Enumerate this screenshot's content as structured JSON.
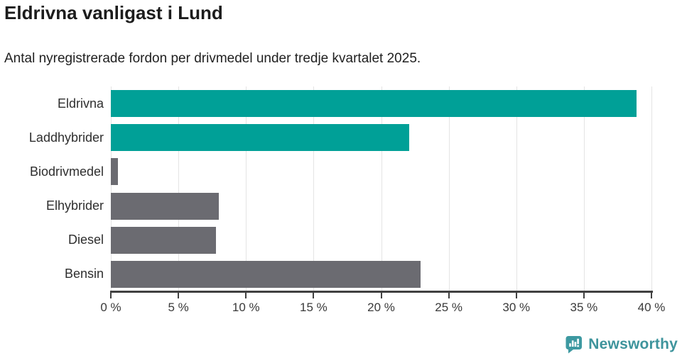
{
  "title": "Eldrivna vanligast i Lund",
  "subtitle": "Antal nyregistrerade fordon per drivmedel under tredje kvartalet 2025.",
  "chart_data": {
    "type": "bar",
    "orientation": "horizontal",
    "title": "Eldrivna vanligast i Lund",
    "subtitle": "Antal nyregistrerade fordon per drivmedel under tredje kvartalet 2025.",
    "categories": [
      "Eldrivna",
      "Laddhybrider",
      "Biodrivmedel",
      "Elhybrider",
      "Diesel",
      "Bensin"
    ],
    "values": [
      38.9,
      22.1,
      0.5,
      8.0,
      7.8,
      22.9
    ],
    "bar_colors": [
      "#00a097",
      "#00a097",
      "#6b6b71",
      "#6b6b71",
      "#6b6b71",
      "#6b6b71"
    ],
    "xlim": [
      0,
      40
    ],
    "x_ticks": [
      0,
      5,
      10,
      15,
      20,
      25,
      30,
      35,
      40
    ],
    "x_tick_labels": [
      "0 %",
      "5 %",
      "10 %",
      "15 %",
      "20 %",
      "25 %",
      "30 %",
      "35 %",
      "40 %"
    ],
    "grid": true,
    "legend": false,
    "xlabel": "",
    "ylabel": ""
  },
  "colors": {
    "teal": "#00a097",
    "gray": "#6b6b71",
    "gridline": "#e4e4e4",
    "axis": "#404040",
    "logo_teal": "#3e949c"
  },
  "footer": {
    "brand": "Newsworthy",
    "logo_icon": "speech-bubble-bar-chart-icon"
  }
}
